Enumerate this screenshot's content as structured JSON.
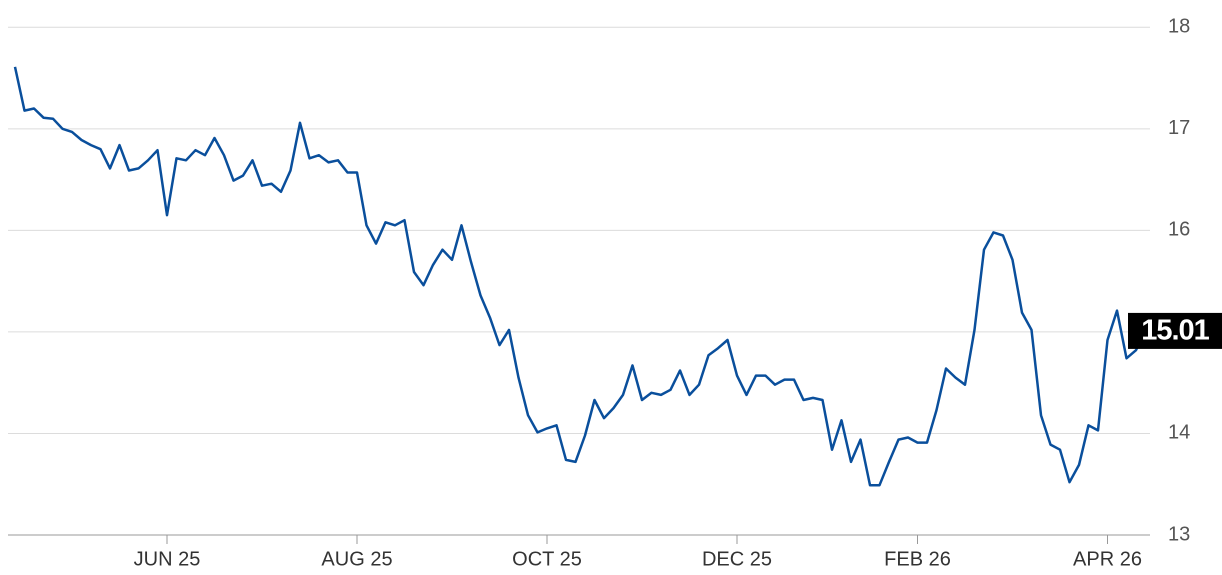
{
  "chart_data": {
    "type": "line",
    "color": "#0a4f9c",
    "grid": true,
    "categories": [
      null,
      null,
      null,
      null,
      null,
      null,
      null,
      null,
      null,
      null,
      null,
      null,
      null,
      null,
      null,
      null,
      "JUN 25",
      null,
      null,
      null,
      null,
      null,
      null,
      null,
      null,
      null,
      null,
      null,
      null,
      null,
      null,
      null,
      null,
      null,
      null,
      null,
      "AUG 25",
      null,
      null,
      null,
      null,
      null,
      null,
      null,
      null,
      null,
      null,
      null,
      null,
      null,
      null,
      null,
      null,
      null,
      null,
      null,
      "OCT 25",
      null,
      null,
      null,
      null,
      null,
      null,
      null,
      null,
      null,
      null,
      null,
      null,
      null,
      null,
      null,
      null,
      null,
      null,
      null,
      "DEC 25",
      null,
      null,
      null,
      null,
      null,
      null,
      null,
      null,
      null,
      null,
      null,
      null,
      null,
      null,
      null,
      null,
      null,
      null,
      "FEB 26",
      null,
      null,
      null,
      null,
      null,
      null,
      null,
      null,
      null,
      null,
      null,
      null,
      null,
      null,
      null,
      null,
      null,
      null,
      null,
      "APR 26",
      null,
      null,
      null,
      null
    ],
    "values": [
      17.61,
      17.18,
      17.2,
      17.11,
      17.1,
      17.0,
      16.97,
      16.89,
      16.84,
      16.8,
      16.61,
      16.84,
      16.59,
      16.61,
      16.69,
      16.79,
      16.15,
      16.71,
      16.69,
      16.79,
      16.74,
      16.91,
      16.74,
      16.49,
      16.54,
      16.69,
      16.44,
      16.46,
      16.38,
      16.59,
      17.06,
      16.71,
      16.74,
      16.67,
      16.69,
      16.57,
      16.57,
      16.05,
      15.87,
      16.08,
      16.05,
      16.1,
      15.59,
      15.46,
      15.66,
      15.81,
      15.71,
      16.05,
      15.69,
      15.36,
      15.14,
      14.87,
      15.02,
      14.55,
      14.18,
      14.01,
      14.05,
      14.08,
      13.74,
      13.72,
      13.98,
      14.33,
      14.15,
      14.25,
      14.38,
      14.67,
      14.33,
      14.4,
      14.38,
      14.43,
      14.62,
      14.38,
      14.48,
      14.77,
      14.84,
      14.92,
      14.57,
      14.38,
      14.57,
      14.57,
      14.48,
      14.53,
      14.53,
      14.33,
      14.35,
      14.33,
      13.84,
      14.13,
      13.72,
      13.94,
      13.49,
      13.49,
      13.72,
      13.94,
      13.96,
      13.91,
      13.91,
      14.23,
      14.64,
      14.55,
      14.48,
      15.02,
      15.81,
      15.98,
      15.95,
      15.71,
      15.19,
      15.02,
      14.18,
      13.89,
      13.84,
      13.52,
      13.69,
      14.08,
      14.03,
      14.92,
      15.21,
      14.74,
      14.82,
      15.01
    ],
    "ylim": [
      13,
      18.2
    ],
    "yticks": [
      13,
      14,
      15,
      16,
      17,
      18
    ]
  }
}
